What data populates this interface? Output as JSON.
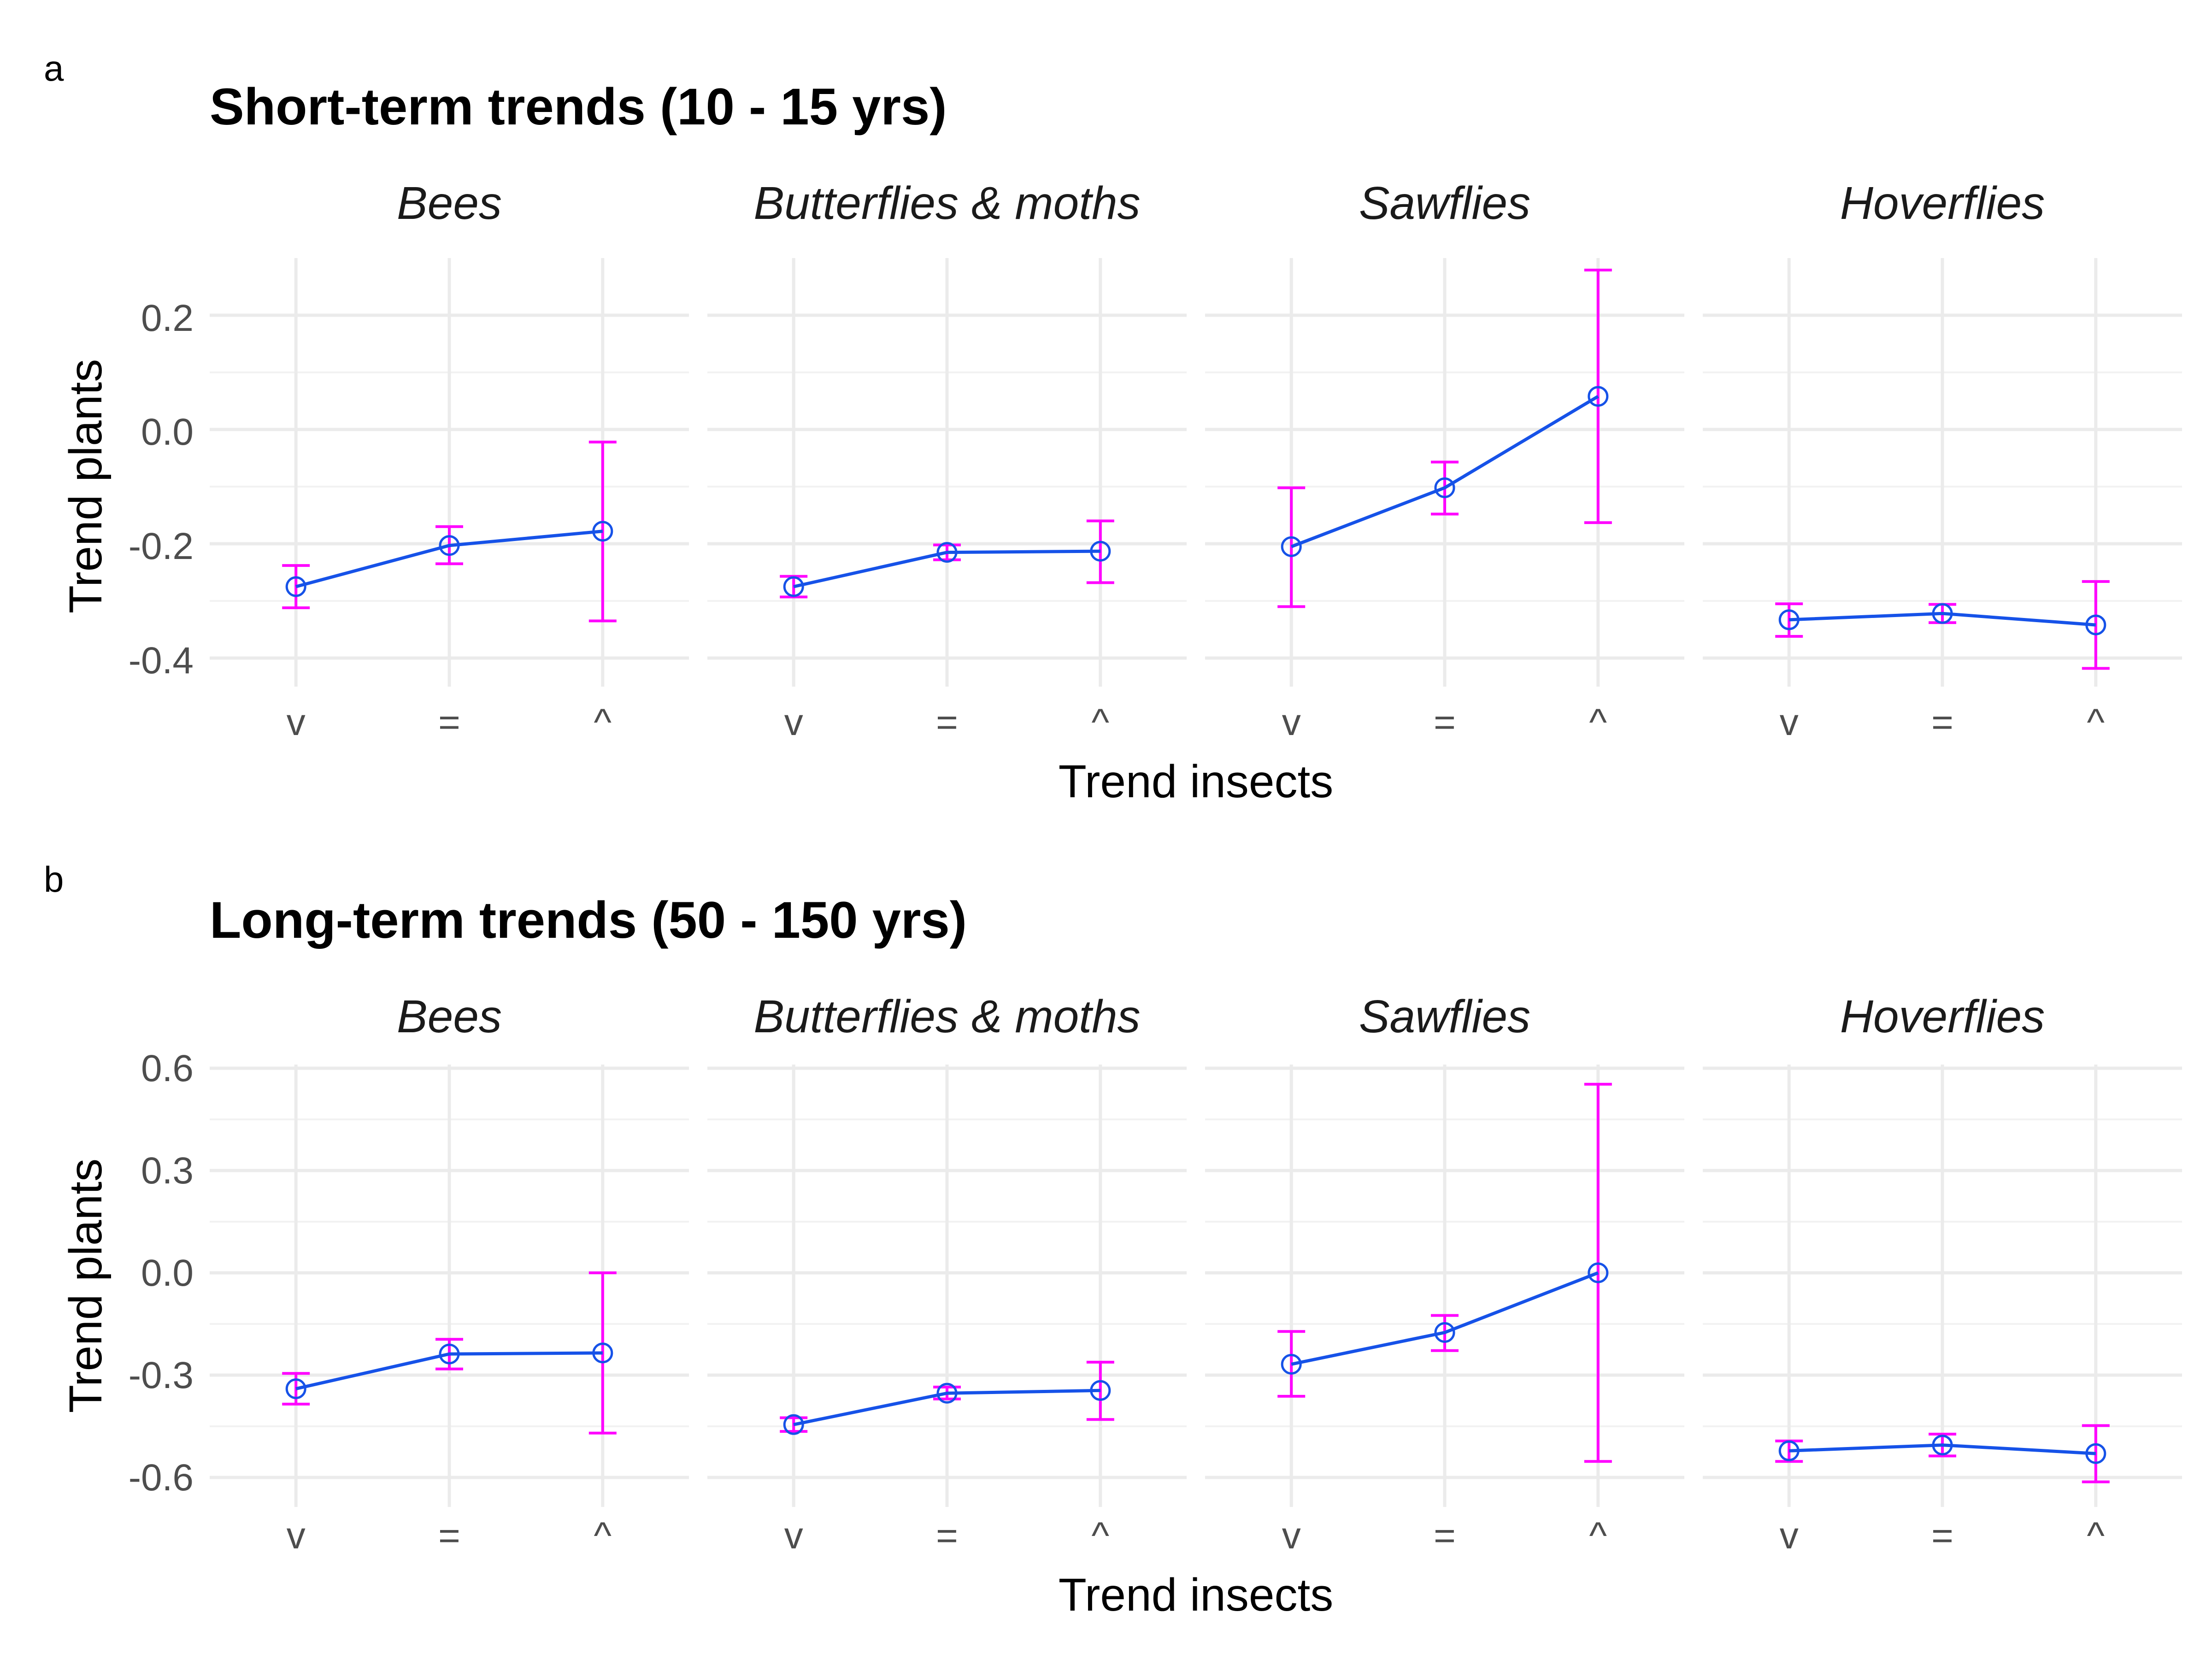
{
  "figure": {
    "panels": [
      {
        "tag": "a",
        "title": "Short-term trends (10 - 15 yrs)",
        "xlabel": "Trend insects",
        "ylabel": "Trend plants",
        "yticks": [
          "0.2",
          "0.0",
          "-0.2",
          "-0.4"
        ],
        "xticks": [
          "v",
          "=",
          "^"
        ]
      },
      {
        "tag": "b",
        "title": "Long-term trends (50 - 150 yrs)",
        "xlabel": "Trend insects",
        "ylabel": "Trend plants",
        "yticks": [
          "0.6",
          "0.3",
          "0.0",
          "-0.3",
          "-0.6"
        ],
        "xticks": [
          "v",
          "=",
          "^"
        ]
      }
    ]
  },
  "chart_data": [
    {
      "type": "line",
      "title": "Short-term trends (10 - 15 yrs)",
      "xlabel": "Trend insects",
      "ylabel": "Trend plants",
      "categories": [
        "v",
        "=",
        "^"
      ],
      "ylim": [
        -0.46,
        0.3
      ],
      "yticks": [
        0.2,
        0.0,
        -0.2,
        -0.4
      ],
      "grid": true,
      "line_color": "#1652e8",
      "errorbar_color": "#ff00ff",
      "facets": [
        {
          "name": "Bees",
          "values": [
            -0.275,
            -0.203,
            -0.178
          ],
          "lower": [
            -0.312,
            -0.235,
            -0.335
          ],
          "upper": [
            -0.238,
            -0.17,
            -0.022
          ]
        },
        {
          "name": "Butterflies & moths",
          "values": [
            -0.275,
            -0.215,
            -0.213
          ],
          "lower": [
            -0.293,
            -0.228,
            -0.268
          ],
          "upper": [
            -0.257,
            -0.202,
            -0.16
          ]
        },
        {
          "name": "Sawflies",
          "values": [
            -0.205,
            -0.102,
            0.058
          ],
          "lower": [
            -0.31,
            -0.148,
            -0.163
          ],
          "upper": [
            -0.102,
            -0.057,
            0.279
          ]
        },
        {
          "name": "Hoverflies",
          "values": [
            -0.333,
            -0.322,
            -0.342
          ],
          "lower": [
            -0.362,
            -0.338,
            -0.418
          ],
          "upper": [
            -0.305,
            -0.306,
            -0.266
          ]
        }
      ]
    },
    {
      "type": "line",
      "title": "Long-term trends (50 - 150 yrs)",
      "xlabel": "Trend insects",
      "ylabel": "Trend plants",
      "categories": [
        "v",
        "=",
        "^"
      ],
      "ylim": [
        -0.68,
        0.63
      ],
      "yticks": [
        0.6,
        0.3,
        0.0,
        -0.3,
        -0.6
      ],
      "grid": true,
      "line_color": "#1652e8",
      "errorbar_color": "#ff00ff",
      "facets": [
        {
          "name": "Bees",
          "values": [
            -0.34,
            -0.238,
            -0.235
          ],
          "lower": [
            -0.385,
            -0.282,
            -0.47
          ],
          "upper": [
            -0.295,
            -0.195,
            0.0
          ]
        },
        {
          "name": "Butterflies & moths",
          "values": [
            -0.445,
            -0.353,
            -0.345
          ],
          "lower": [
            -0.465,
            -0.37,
            -0.43
          ],
          "upper": [
            -0.425,
            -0.335,
            -0.262
          ]
        },
        {
          "name": "Sawflies",
          "values": [
            -0.268,
            -0.175,
            0.0
          ],
          "lower": [
            -0.362,
            -0.228,
            -0.553
          ],
          "upper": [
            -0.172,
            -0.125,
            0.553
          ]
        },
        {
          "name": "Hoverflies",
          "values": [
            -0.522,
            -0.505,
            -0.53
          ],
          "lower": [
            -0.553,
            -0.537,
            -0.613
          ],
          "upper": [
            -0.493,
            -0.473,
            -0.448
          ]
        }
      ]
    }
  ]
}
